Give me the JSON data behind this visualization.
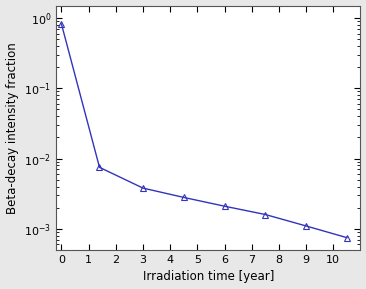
{
  "x": [
    0,
    1.4,
    3.0,
    4.5,
    6.0,
    7.5,
    9.0,
    10.5
  ],
  "y": [
    0.82,
    0.0075,
    0.0038,
    0.0028,
    0.0021,
    0.0016,
    0.0011,
    0.00075
  ],
  "line_color": "#3333bb",
  "marker": "^",
  "marker_facecolor": "none",
  "marker_edgecolor": "#3333bb",
  "xlabel": "Irradiation time [year]",
  "ylabel": "Beta-decay intensity fraction",
  "xlim": [
    -0.2,
    11.0
  ],
  "ylim_log": [
    0.0005,
    1.5
  ],
  "xticks": [
    0,
    1,
    2,
    3,
    4,
    5,
    6,
    7,
    8,
    9,
    10
  ],
  "background_color": "#e8e8e8",
  "axes_background": "#ffffff",
  "label_fontsize": 8.5,
  "tick_fontsize": 8
}
